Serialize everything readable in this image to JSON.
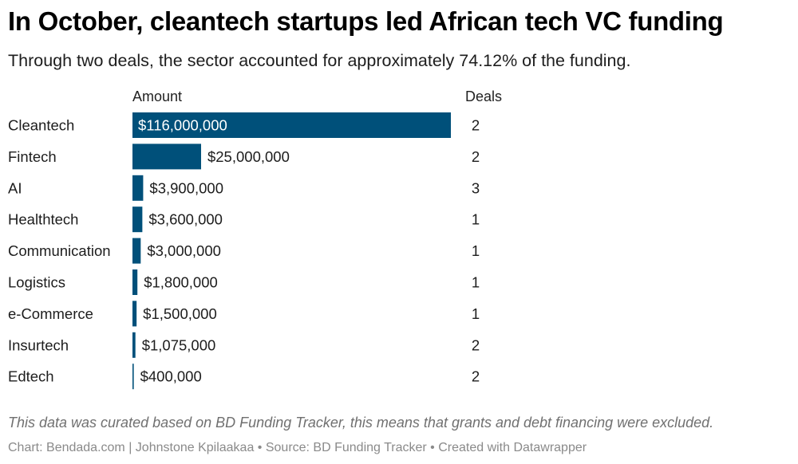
{
  "header": {
    "title": "In October, cleantech startups led African tech VC funding",
    "subtitle": "Through two deals, the sector accounted for approximately 74.12% of the funding."
  },
  "columns": {
    "amount_label": "Amount",
    "deals_label": "Deals"
  },
  "footer": {
    "notes": "This data was curated based on BD Funding Tracker, this means that grants and debt financing were excluded.",
    "byline": "Chart: Bendada.com | Johnstone Kpilaakaa • Source: BD Funding Tracker • Created with Datawrapper"
  },
  "colors": {
    "bar": "#00507a",
    "label_inside": "#ffffff",
    "label_outside": "#1d1d1d"
  },
  "chart_data": {
    "type": "bar",
    "orientation": "horizontal",
    "title": "In October, cleantech startups led African tech VC funding",
    "subtitle": "Through two deals, the sector accounted for approximately 74.12% of the funding.",
    "xlabel": "Amount",
    "ylabel": "",
    "categories": [
      "Cleantech",
      "Fintech",
      "AI",
      "Healthtech",
      "Communication",
      "Logistics",
      "e-Commerce",
      "Insurtech",
      "Edtech"
    ],
    "values": [
      116000000,
      25000000,
      3900000,
      3600000,
      3000000,
      1800000,
      1500000,
      1075000,
      400000
    ],
    "value_labels": [
      "$116,000,000",
      "$25,000,000",
      "$3,900,000",
      "$3,600,000",
      "$3,000,000",
      "$1,800,000",
      "$1,500,000",
      "$1,075,000",
      "$400,000"
    ],
    "deals": [
      2,
      2,
      3,
      1,
      1,
      1,
      1,
      2,
      2
    ],
    "xlim": [
      0,
      116000000
    ],
    "grid": false,
    "legend": "none"
  }
}
